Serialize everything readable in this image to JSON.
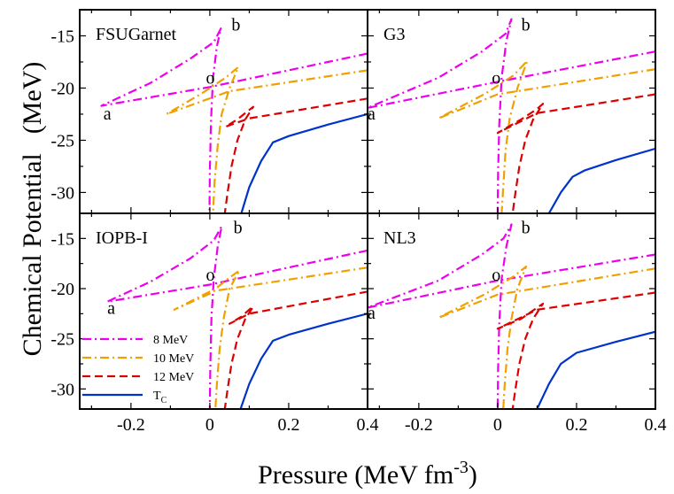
{
  "chart_data": {
    "type": "line",
    "xlabel": "Pressure (MeV fm",
    "xlabel_sup": "-3",
    "xlabel_end": ")",
    "ylabel_parts": [
      "Chemical Potential",
      "(MeV)"
    ],
    "xlim": [
      -0.33,
      0.4
    ],
    "ylim": [
      -32,
      -12.5
    ],
    "xticks": [
      -0.2,
      0,
      0.2,
      0.4
    ],
    "xtick_labels": [
      "-0.2",
      "0",
      "0.2",
      "0.4"
    ],
    "yticks": [
      -15,
      -20,
      -25,
      -30
    ],
    "ytick_labels": [
      "-15",
      "-20",
      "-25",
      "-30"
    ],
    "colors": {
      "8 MeV": "#ee00ee",
      "10 MeV": "#f0a000",
      "12 MeV": "#dd0000",
      "TC": "#0033cc"
    },
    "legend": {
      "placement": "lower-left of IOPB-I panel",
      "entries": [
        {
          "label": "8 MeV",
          "color": "#ee00ee",
          "dash": "dashdot"
        },
        {
          "label": "10 MeV",
          "color": "#f0a000",
          "dash": "dashdot"
        },
        {
          "label": "12 MeV",
          "color": "#dd0000",
          "dash": "dash"
        },
        {
          "label": "T",
          "sub": "C",
          "color": "#0033cc",
          "dash": "solid"
        }
      ]
    },
    "panels": [
      {
        "title": "FSUGarnet",
        "annotations": [
          {
            "text": "a",
            "x": -0.27,
            "y": -23.0
          },
          {
            "text": "b",
            "x": 0.055,
            "y": -14.5
          },
          {
            "text": "o",
            "x": -0.01,
            "y": -19.6
          }
        ],
        "series": [
          {
            "name": "8 MeV",
            "color": "#ee00ee",
            "dash": "dashdot",
            "points": [
              [
                0.4,
                -16.7
              ],
              [
                0.0,
                -19.9
              ],
              [
                -0.275,
                -21.7
              ],
              [
                -0.15,
                -19.5
              ],
              [
                -0.05,
                -17.2
              ],
              [
                0.01,
                -15.6
              ],
              [
                0.028,
                -14.3
              ],
              [
                0.018,
                -16.0
              ],
              [
                0.008,
                -19.0
              ],
              [
                0.003,
                -23.0
              ],
              [
                0.0,
                -28.0
              ],
              [
                -0.001,
                -32.0
              ]
            ]
          },
          {
            "name": "10 MeV",
            "color": "#f0a000",
            "dash": "dashdot",
            "points": [
              [
                0.4,
                -18.3
              ],
              [
                0.05,
                -20.3
              ],
              [
                -0.11,
                -22.5
              ],
              [
                -0.02,
                -20.5
              ],
              [
                0.04,
                -19.0
              ],
              [
                0.072,
                -18.0
              ],
              [
                0.05,
                -20.0
              ],
              [
                0.03,
                -22.5
              ],
              [
                0.02,
                -25.5
              ],
              [
                0.012,
                -29.0
              ],
              [
                0.008,
                -32.0
              ]
            ]
          },
          {
            "name": "12 MeV",
            "color": "#dd0000",
            "dash": "dash",
            "points": [
              [
                0.4,
                -21.0
              ],
              [
                0.1,
                -22.9
              ],
              [
                0.04,
                -23.7
              ],
              [
                0.07,
                -23.0
              ],
              [
                0.1,
                -22.1
              ],
              [
                0.11,
                -21.8
              ],
              [
                0.09,
                -23.0
              ],
              [
                0.07,
                -25.0
              ],
              [
                0.055,
                -27.5
              ],
              [
                0.045,
                -30.0
              ],
              [
                0.038,
                -32.0
              ]
            ]
          },
          {
            "name": "TC",
            "color": "#0033cc",
            "dash": "solid",
            "points": [
              [
                0.08,
                -32.0
              ],
              [
                0.1,
                -29.5
              ],
              [
                0.13,
                -27.0
              ],
              [
                0.16,
                -25.2
              ],
              [
                0.2,
                -24.6
              ],
              [
                0.3,
                -23.5
              ],
              [
                0.4,
                -22.5
              ]
            ]
          }
        ]
      },
      {
        "title": "G3",
        "annotations": [
          {
            "text": "a",
            "x": -0.33,
            "y": -23.0
          },
          {
            "text": "b",
            "x": 0.06,
            "y": -14.5
          },
          {
            "text": "o",
            "x": -0.015,
            "y": -19.6
          }
        ],
        "series": [
          {
            "name": "8 MeV",
            "color": "#ee00ee",
            "dash": "dashdot",
            "points": [
              [
                0.4,
                -16.5
              ],
              [
                0.0,
                -19.4
              ],
              [
                -0.33,
                -21.9
              ],
              [
                -0.15,
                -19.0
              ],
              [
                -0.04,
                -16.5
              ],
              [
                0.02,
                -14.8
              ],
              [
                0.035,
                -13.4
              ],
              [
                0.022,
                -15.5
              ],
              [
                0.01,
                -19.0
              ],
              [
                0.004,
                -23.5
              ],
              [
                0.001,
                -28.0
              ],
              [
                0.0,
                -32.0
              ]
            ]
          },
          {
            "name": "10 MeV",
            "color": "#f0a000",
            "dash": "dashdot",
            "points": [
              [
                0.4,
                -18.2
              ],
              [
                0.0,
                -20.6
              ],
              [
                -0.15,
                -22.9
              ],
              [
                -0.03,
                -20.5
              ],
              [
                0.04,
                -18.8
              ],
              [
                0.075,
                -17.4
              ],
              [
                0.05,
                -20.0
              ],
              [
                0.03,
                -23.0
              ],
              [
                0.02,
                -26.0
              ],
              [
                0.014,
                -29.5
              ],
              [
                0.01,
                -32.0
              ]
            ]
          },
          {
            "name": "12 MeV",
            "color": "#dd0000",
            "dash": "dash",
            "points": [
              [
                0.4,
                -20.6
              ],
              [
                0.1,
                -22.4
              ],
              [
                0.0,
                -24.3
              ],
              [
                0.06,
                -23.0
              ],
              [
                0.1,
                -22.0
              ],
              [
                0.115,
                -21.5
              ],
              [
                0.09,
                -23.0
              ],
              [
                0.07,
                -25.0
              ],
              [
                0.055,
                -27.5
              ],
              [
                0.045,
                -30.0
              ],
              [
                0.038,
                -32.0
              ]
            ]
          },
          {
            "name": "TC",
            "color": "#0033cc",
            "dash": "solid",
            "points": [
              [
                0.13,
                -32.0
              ],
              [
                0.16,
                -30.0
              ],
              [
                0.19,
                -28.5
              ],
              [
                0.22,
                -27.9
              ],
              [
                0.3,
                -26.9
              ],
              [
                0.4,
                -25.8
              ]
            ]
          }
        ]
      },
      {
        "title": "IOPB-I",
        "annotations": [
          {
            "text": "a",
            "x": -0.26,
            "y": -22.5
          },
          {
            "text": "b",
            "x": 0.06,
            "y": -14.5
          },
          {
            "text": "o",
            "x": -0.01,
            "y": -19.2
          }
        ],
        "series": [
          {
            "name": "8 MeV",
            "color": "#ee00ee",
            "dash": "dashdot",
            "points": [
              [
                0.4,
                -16.2
              ],
              [
                0.0,
                -19.6
              ],
              [
                -0.26,
                -21.3
              ],
              [
                -0.15,
                -19.3
              ],
              [
                -0.05,
                -17.0
              ],
              [
                0.01,
                -15.2
              ],
              [
                0.03,
                -13.8
              ],
              [
                0.02,
                -15.8
              ],
              [
                0.01,
                -19.0
              ],
              [
                0.004,
                -23.0
              ],
              [
                0.001,
                -28.0
              ],
              [
                0.0,
                -32.0
              ]
            ]
          },
          {
            "name": "10 MeV",
            "color": "#f0a000",
            "dash": "dashdot",
            "points": [
              [
                0.4,
                -17.9
              ],
              [
                0.0,
                -20.3
              ],
              [
                -0.09,
                -22.1
              ],
              [
                0.0,
                -20.5
              ],
              [
                0.04,
                -19.2
              ],
              [
                0.075,
                -18.2
              ],
              [
                0.05,
                -20.0
              ],
              [
                0.035,
                -23.0
              ],
              [
                0.025,
                -26.0
              ],
              [
                0.018,
                -29.5
              ],
              [
                0.014,
                -32.0
              ]
            ]
          },
          {
            "name": "12 MeV",
            "color": "#dd0000",
            "dash": "dash",
            "points": [
              [
                0.4,
                -20.3
              ],
              [
                0.1,
                -22.5
              ],
              [
                0.05,
                -23.5
              ],
              [
                0.08,
                -22.8
              ],
              [
                0.1,
                -22.1
              ],
              [
                0.11,
                -21.8
              ],
              [
                0.09,
                -23.0
              ],
              [
                0.07,
                -25.0
              ],
              [
                0.055,
                -27.5
              ],
              [
                0.045,
                -30.0
              ],
              [
                0.038,
                -32.0
              ]
            ]
          },
          {
            "name": "TC",
            "color": "#0033cc",
            "dash": "solid",
            "points": [
              [
                0.078,
                -32.0
              ],
              [
                0.1,
                -29.5
              ],
              [
                0.13,
                -27.0
              ],
              [
                0.16,
                -25.2
              ],
              [
                0.2,
                -24.6
              ],
              [
                0.3,
                -23.5
              ],
              [
                0.4,
                -22.5
              ]
            ]
          }
        ]
      },
      {
        "title": "NL3",
        "annotations": [
          {
            "text": "a",
            "x": -0.33,
            "y": -23.0
          },
          {
            "text": "b",
            "x": 0.06,
            "y": -14.5
          },
          {
            "text": "o",
            "x": -0.015,
            "y": -19.2
          }
        ],
        "series": [
          {
            "name": "8 MeV",
            "color": "#ee00ee",
            "dash": "dashdot",
            "points": [
              [
                0.4,
                -16.6
              ],
              [
                0.0,
                -19.2
              ],
              [
                -0.33,
                -21.9
              ],
              [
                -0.15,
                -19.2
              ],
              [
                -0.04,
                -16.6
              ],
              [
                0.015,
                -15.0
              ],
              [
                0.035,
                -13.6
              ],
              [
                0.022,
                -15.8
              ],
              [
                0.01,
                -19.0
              ],
              [
                0.004,
                -23.5
              ],
              [
                0.001,
                -28.0
              ],
              [
                0.0,
                -32.0
              ]
            ]
          },
          {
            "name": "10 MeV",
            "color": "#f0a000",
            "dash": "dashdot",
            "points": [
              [
                0.4,
                -18.0
              ],
              [
                0.0,
                -20.6
              ],
              [
                -0.15,
                -22.9
              ],
              [
                -0.03,
                -20.5
              ],
              [
                0.04,
                -18.8
              ],
              [
                0.072,
                -17.8
              ],
              [
                0.05,
                -20.0
              ],
              [
                0.035,
                -23.0
              ],
              [
                0.025,
                -26.0
              ],
              [
                0.018,
                -29.5
              ],
              [
                0.014,
                -32.0
              ]
            ]
          },
          {
            "name": "12 MeV",
            "color": "#dd0000",
            "dash": "dash",
            "points": [
              [
                0.4,
                -20.4
              ],
              [
                0.1,
                -22.1
              ],
              [
                0.0,
                -24.0
              ],
              [
                0.06,
                -23.0
              ],
              [
                0.1,
                -21.9
              ],
              [
                0.115,
                -21.5
              ],
              [
                0.09,
                -23.0
              ],
              [
                0.07,
                -25.0
              ],
              [
                0.055,
                -27.5
              ],
              [
                0.045,
                -30.0
              ],
              [
                0.038,
                -32.0
              ]
            ]
          },
          {
            "name": "TC",
            "color": "#0033cc",
            "dash": "solid",
            "points": [
              [
                0.1,
                -32.0
              ],
              [
                0.13,
                -29.5
              ],
              [
                0.16,
                -27.5
              ],
              [
                0.2,
                -26.4
              ],
              [
                0.3,
                -25.3
              ],
              [
                0.4,
                -24.3
              ]
            ]
          }
        ]
      }
    ]
  }
}
